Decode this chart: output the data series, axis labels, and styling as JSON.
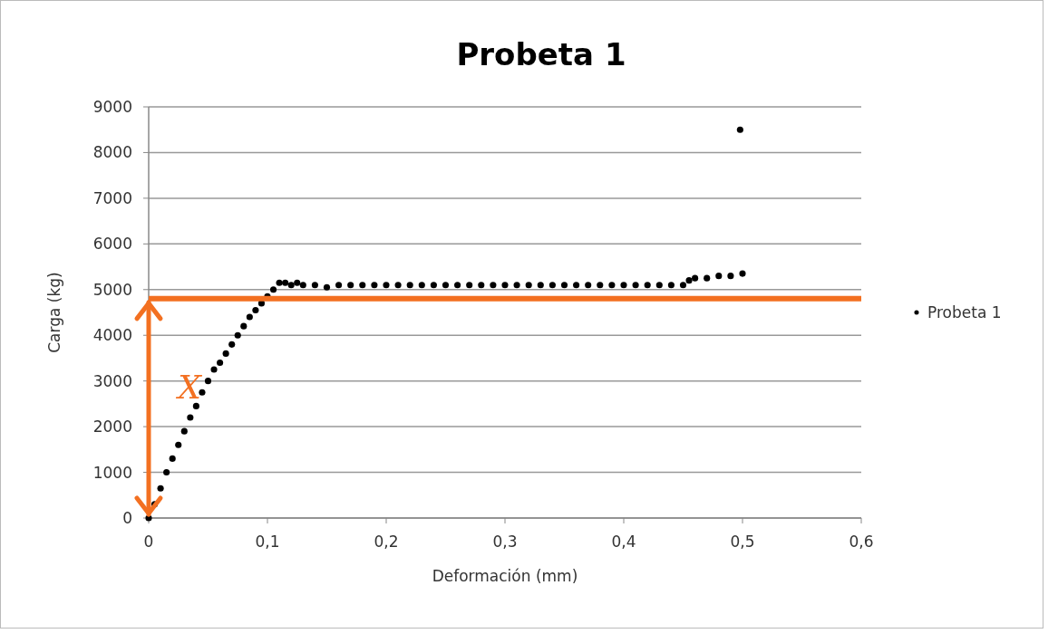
{
  "chart_data": {
    "type": "scatter",
    "title": "Probeta 1",
    "xlabel": "Deformación (mm)",
    "ylabel": "Carga (kg)",
    "xlim": [
      0,
      0.6
    ],
    "xticks": [
      {
        "value": 0,
        "label": "0"
      },
      {
        "value": 0.1,
        "label": "0,1"
      },
      {
        "value": 0.2,
        "label": "0,2"
      },
      {
        "value": 0.3,
        "label": "0,3"
      },
      {
        "value": 0.4,
        "label": "0,4"
      },
      {
        "value": 0.5,
        "label": "0,5"
      },
      {
        "value": 0.6,
        "label": "0,6"
      }
    ],
    "ylim": [
      0,
      9000
    ],
    "yticks": [
      0,
      1000,
      2000,
      3000,
      4000,
      5000,
      6000,
      7000,
      8000,
      9000
    ],
    "grid": "y",
    "legend": "right",
    "marker": "circle",
    "series": [
      {
        "name": "Probeta 1",
        "color": "#000000",
        "x": [
          0,
          0.005,
          0.01,
          0.015,
          0.02,
          0.025,
          0.03,
          0.035,
          0.04,
          0.045,
          0.05,
          0.055,
          0.06,
          0.065,
          0.07,
          0.075,
          0.08,
          0.085,
          0.09,
          0.095,
          0.1,
          0.105,
          0.11,
          0.115,
          0.12,
          0.125,
          0.13,
          0.14,
          0.15,
          0.16,
          0.17,
          0.18,
          0.19,
          0.2,
          0.21,
          0.22,
          0.23,
          0.24,
          0.25,
          0.26,
          0.27,
          0.28,
          0.29,
          0.3,
          0.31,
          0.32,
          0.33,
          0.34,
          0.35,
          0.36,
          0.37,
          0.38,
          0.39,
          0.4,
          0.41,
          0.42,
          0.43,
          0.44,
          0.45,
          0.455,
          0.46,
          0.47,
          0.48,
          0.49,
          0.5,
          0.498
        ],
        "values": [
          0,
          300,
          650,
          1000,
          1300,
          1600,
          1900,
          2200,
          2450,
          2750,
          3000,
          3250,
          3400,
          3600,
          3800,
          4000,
          4200,
          4400,
          4550,
          4700,
          4850,
          5000,
          5150,
          5150,
          5100,
          5150,
          5100,
          5100,
          5050,
          5100,
          5100,
          5100,
          5100,
          5100,
          5100,
          5100,
          5100,
          5100,
          5100,
          5100,
          5100,
          5100,
          5100,
          5100,
          5100,
          5100,
          5100,
          5100,
          5100,
          5100,
          5100,
          5100,
          5100,
          5100,
          5100,
          5100,
          5100,
          5100,
          5100,
          5200,
          5250,
          5250,
          5300,
          5300,
          5350,
          8500
        ]
      }
    ],
    "ref_lines": [
      {
        "axis": "y",
        "value": 4800,
        "color": "#f37021"
      }
    ],
    "annotations": [
      "X"
    ]
  }
}
